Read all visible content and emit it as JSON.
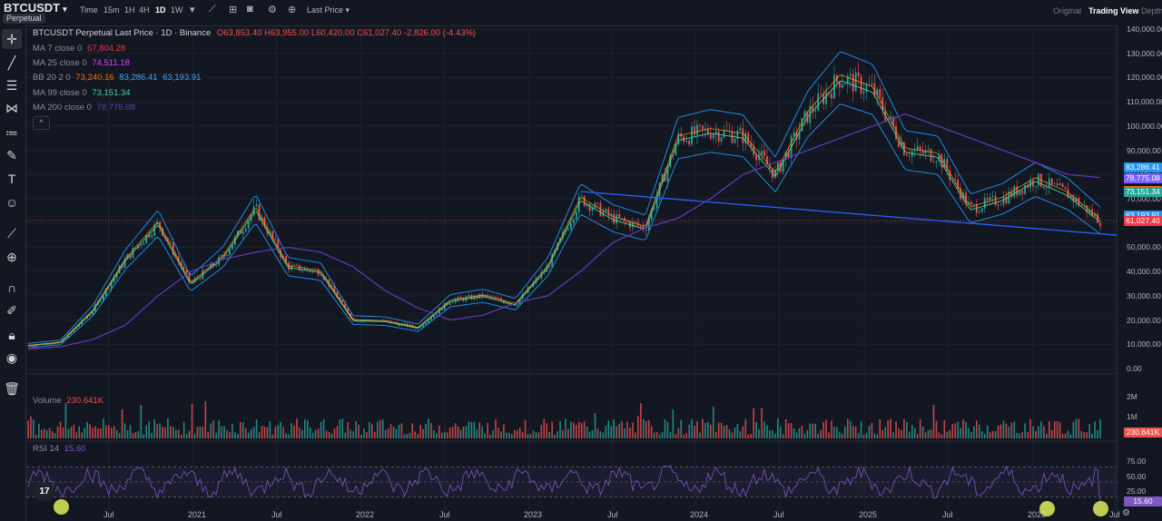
{
  "header": {
    "symbol": "BTCUSDT",
    "caret": "▾",
    "badge": "Perpetual",
    "timeframes": [
      "Time",
      "15m",
      "1H",
      "4H",
      "1D",
      "1W"
    ],
    "active_timeframe": "1D",
    "price_source": "Last Price ▾",
    "views": [
      "Original",
      "Trading View",
      "Depth"
    ],
    "active_view": "Trading View"
  },
  "legend": {
    "title": "BTCUSDT Perpetual Last Price · 1D · Binance",
    "ohlc": "O63,853.40  H63,955.00  L60,420.00  C61,027.40  -2,826.00  (-4.43%)",
    "ma7_label": "MA 7 close 0",
    "ma7_value": "67,804.28",
    "ma25_label": "MA 25 close 0",
    "ma25_value": "74,511.18",
    "bb_label": "BB 20 2 0",
    "bb_basis": "73,240.16",
    "bb_upper": "83,286.41",
    "bb_lower": "63,193.91",
    "ma99_label": "MA 99 close 0",
    "ma99_value": "73,151.34",
    "ma200_label": "MA 200 close 0",
    "ma200_value": "78,775.08",
    "collapse": "^"
  },
  "volume": {
    "label": "Volume",
    "value": "230.641K",
    "ticks": [
      "2M",
      "1M"
    ],
    "tag": "230.641K"
  },
  "rsi": {
    "label": "RSI 14",
    "value": "15.60",
    "ticks": [
      "75.00",
      "50.00",
      "25.00"
    ],
    "tag": "15.60"
  },
  "price_axis": [
    "140,000.00",
    "130,000.00",
    "120,000.00",
    "110,000.00",
    "100,000.00",
    "90,000.00",
    "80,000.00",
    "70,000.00",
    "60,000.00",
    "50,000.00",
    "40,000.00",
    "30,000.00",
    "20,000.00",
    "10,000.00",
    "0.00"
  ],
  "price_tags": [
    {
      "text": "83,286.41",
      "color": "#2196f3"
    },
    {
      "text": "78,775.08",
      "color": "#7b61ff"
    },
    {
      "text": "73,240.16",
      "color": "#ff6d00"
    },
    {
      "text": "73,151.34",
      "color": "#26a69a"
    },
    {
      "text": "63,193.91",
      "color": "#2196f3"
    },
    {
      "text": "61,027.40",
      "color": "#f23645"
    }
  ],
  "time_axis": [
    "Jul",
    "2021",
    "Jul",
    "2022",
    "Jul",
    "2023",
    "Jul",
    "2024",
    "Jul",
    "2025",
    "Jul",
    "2026",
    "Jul"
  ],
  "logo": "17",
  "colors": {
    "bg": "#131722",
    "up": "#26a69a",
    "down": "#ef5350",
    "ma7": "#f23645",
    "ma25": "#e91e63",
    "bb": "#2196f3",
    "ma99": "#4dd0a8",
    "ma200": "#673ab7",
    "trend": "#2962ff",
    "rsi": "#7e57c2"
  },
  "chart_data": {
    "type": "line",
    "title": "BTCUSDT Perpetual Last Price · 1D · Binance",
    "x": [
      "2020-06",
      "2020-09",
      "2020-12",
      "2021-02",
      "2021-04",
      "2021-06",
      "2021-08",
      "2021-11",
      "2022-01",
      "2022-04",
      "2022-06",
      "2022-09",
      "2022-12",
      "2023-03",
      "2023-06",
      "2023-09",
      "2023-12",
      "2024-03",
      "2024-05",
      "2024-08",
      "2024-11",
      "2024-12",
      "2025-02",
      "2025-04",
      "2025-06",
      "2025-08",
      "2025-10",
      "2025-12",
      "2026-01",
      "2026-02",
      "2026-03",
      "2026-04",
      "2026-05",
      "2026-06"
    ],
    "series": [
      {
        "name": "Close",
        "values": [
          9500,
          10800,
          24000,
          45000,
          60000,
          35000,
          46000,
          66000,
          42000,
          40000,
          20000,
          19500,
          16800,
          28000,
          30000,
          26500,
          42000,
          70000,
          62000,
          58000,
          95000,
          98000,
          96000,
          80000,
          105000,
          120000,
          115000,
          90000,
          88000,
          66000,
          70000,
          78000,
          72000,
          61027
        ]
      },
      {
        "name": "MA 200 close 0",
        "values": [
          8000,
          9000,
          12000,
          18000,
          30000,
          40000,
          45000,
          48000,
          50000,
          48000,
          42000,
          32000,
          25000,
          20000,
          22000,
          27000,
          30000,
          40000,
          52000,
          58000,
          62000,
          70000,
          80000,
          85000,
          90000,
          95000,
          100000,
          105000,
          100000,
          95000,
          90000,
          85000,
          80000,
          78775
        ]
      }
    ],
    "ylim": [
      0,
      140000
    ],
    "volume_ylim": [
      0,
      2000000
    ],
    "rsi_ylim": [
      0,
      100
    ],
    "trendline": {
      "from": [
        "2024-03",
        73000
      ],
      "to": [
        "2026-06",
        55000
      ]
    }
  }
}
